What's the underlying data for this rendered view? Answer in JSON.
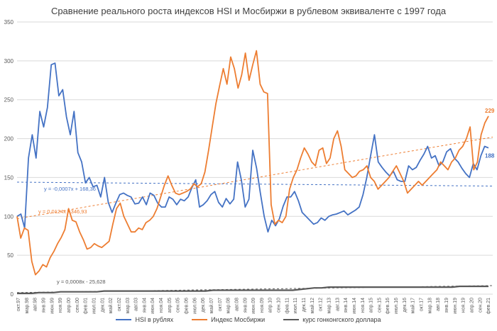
{
  "chart_data": {
    "type": "line",
    "title": "Сравнение реального роста индексов HSI и Мосбиржи в рублевом эквиваленте с 1997 года",
    "ylim": [
      0,
      350
    ],
    "yticks": [
      "0",
      "50",
      "100",
      "150",
      "200",
      "250",
      "300",
      "350"
    ],
    "grid": true,
    "legend_position": "bottom",
    "xlabels": [
      "окт.97",
      "мар.98",
      "авг.98",
      "янв.99",
      "июн.99",
      "ноя.99",
      "апр.00",
      "сен.00",
      "фев.01",
      "июл.01",
      "дек.01",
      "май.02",
      "окт.02",
      "мар.03",
      "авг.03",
      "янв.04",
      "июн.04",
      "ноя.04",
      "апр.05",
      "сен.05",
      "фев.06",
      "июл.06",
      "дек.06",
      "май.07",
      "окт.07",
      "мар.08",
      "авг.08",
      "янв.09",
      "июн.09",
      "ноя.09",
      "апр.10",
      "сен.10",
      "фев.11",
      "июл.11",
      "дек.11",
      "май.12",
      "окт.12",
      "мар.13",
      "авг.13",
      "янв.14",
      "июн.14",
      "ноя.14",
      "апр.15",
      "сен.15",
      "фев.16",
      "июл.16",
      "дек.16",
      "май.17",
      "окт.17",
      "мар.18",
      "авг.18",
      "янв.19",
      "июн.19",
      "ноя.19",
      "апр.20",
      "сен.20",
      "фев.21"
    ],
    "series": [
      {
        "name": "HSI в рублях",
        "color": "#4472C4",
        "values": [
          100,
          103,
          85,
          175,
          205,
          175,
          235,
          215,
          240,
          295,
          297,
          255,
          263,
          228,
          205,
          235,
          182,
          170,
          143,
          150,
          138,
          140,
          125,
          150,
          118,
          105,
          117,
          128,
          130,
          127,
          125,
          116,
          117,
          125,
          115,
          130,
          127,
          117,
          112,
          112,
          125,
          122,
          115,
          122,
          120,
          125,
          137,
          147,
          112,
          115,
          120,
          128,
          132,
          118,
          112,
          123,
          116,
          122,
          170,
          147,
          112,
          122,
          185,
          162,
          130,
          100,
          80,
          95,
          88,
          97,
          113,
          125,
          125,
          132,
          120,
          105,
          100,
          95,
          90,
          92,
          98,
          95,
          100,
          102,
          103,
          105,
          107,
          102,
          105,
          108,
          112,
          128,
          150,
          178,
          205,
          170,
          163,
          157,
          152,
          158,
          147,
          145,
          145,
          165,
          160,
          163,
          172,
          180,
          190,
          175,
          178,
          165,
          170,
          183,
          187,
          175,
          170,
          162,
          155,
          150,
          168,
          160,
          178,
          190,
          188
        ]
      },
      {
        "name": "Индекс Мосбиржи",
        "color": "#ED7D31",
        "values": [
          100,
          72,
          85,
          82,
          42,
          25,
          30,
          38,
          35,
          47,
          55,
          65,
          73,
          83,
          110,
          95,
          93,
          80,
          70,
          58,
          60,
          65,
          62,
          60,
          64,
          68,
          90,
          110,
          117,
          100,
          90,
          80,
          80,
          85,
          83,
          92,
          95,
          100,
          110,
          125,
          140,
          152,
          140,
          130,
          128,
          130,
          132,
          135,
          142,
          138,
          142,
          157,
          185,
          215,
          245,
          268,
          290,
          270,
          305,
          290,
          265,
          282,
          310,
          275,
          295,
          313,
          270,
          260,
          258,
          115,
          90,
          95,
          92,
          100,
          135,
          150,
          160,
          175,
          188,
          180,
          170,
          165,
          185,
          188,
          168,
          175,
          200,
          210,
          190,
          160,
          155,
          150,
          152,
          158,
          160,
          165,
          150,
          145,
          135,
          140,
          145,
          150,
          158,
          165,
          155,
          145,
          130,
          135,
          140,
          145,
          140,
          145,
          150,
          155,
          160,
          170,
          165,
          160,
          170,
          175,
          185,
          190,
          200,
          215,
          160,
          170,
          205,
          220,
          229
        ]
      },
      {
        "name": "курс гонконгского доллара",
        "color": "#595959",
        "values": [
          1,
          1,
          1,
          2,
          2,
          2,
          3,
          3,
          3,
          3,
          3,
          3,
          4,
          4,
          4,
          4,
          4,
          4,
          4,
          4,
          4,
          4,
          4,
          4,
          4,
          4,
          4,
          5,
          5,
          5,
          5,
          5,
          5,
          5,
          5,
          5,
          5,
          5,
          5,
          6,
          7,
          8,
          8,
          9,
          9,
          9,
          9,
          9,
          9,
          9,
          9,
          9,
          9,
          9,
          9,
          9,
          9,
          9,
          9,
          9,
          9,
          10,
          10,
          10,
          10,
          10
        ]
      }
    ],
    "trendlines": [
      {
        "name": "y = -0,0007x + 168,36",
        "label": "y = -0,0007x + 168,36",
        "color": "#4472C4",
        "y_start": 144,
        "y_end": 139
      },
      {
        "name": "y = 0,0124x - 346,93",
        "label": "y = 0,0124x - 346,93",
        "color": "#ED7D31",
        "y_start": 97,
        "y_end": 202
      },
      {
        "name": "y = 0,0008x - 25,628",
        "label": "y = 0,0008x - 25,628",
        "color": "#595959",
        "y_start": 2,
        "y_end": 11
      }
    ],
    "end_labels": [
      {
        "series": "Индекс Мосбиржи",
        "text": "229",
        "color": "#ED7D31",
        "value": 229
      },
      {
        "series": "HSI в рублях",
        "text": "188",
        "color": "#4472C4",
        "value": 188
      }
    ]
  }
}
